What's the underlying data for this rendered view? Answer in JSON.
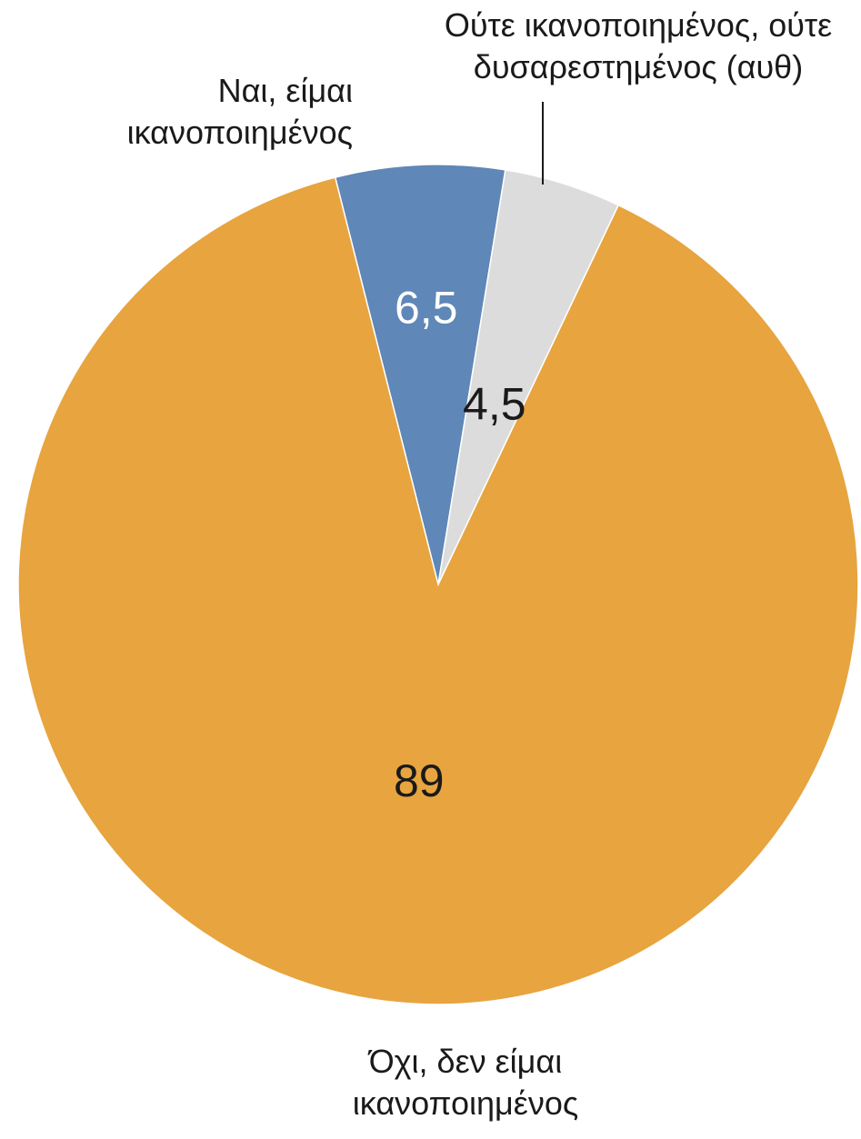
{
  "chart_data": {
    "type": "pie",
    "title": "",
    "slices": [
      {
        "label_lines": [
          "Ναι, είμαι",
          "ικανοποιημένος"
        ],
        "value": 6.5,
        "value_label": "6,5",
        "color": "#5f87b7",
        "value_text_color": "#ffffff"
      },
      {
        "label_lines": [
          "Ούτε ικανοποιημένος, ούτε",
          "δυσαρεστημένος (αυθ)"
        ],
        "value": 4.5,
        "value_label": "4,5",
        "color": "#dcdcdc",
        "value_text_color": "#1a1a1a"
      },
      {
        "label_lines": [
          "Όχι, δεν είμαι",
          "ικανοποιημένος"
        ],
        "value": 89,
        "value_label": "89",
        "color": "#e7a43f",
        "value_text_color": "#1a1a1a"
      }
    ],
    "legend": "none"
  }
}
